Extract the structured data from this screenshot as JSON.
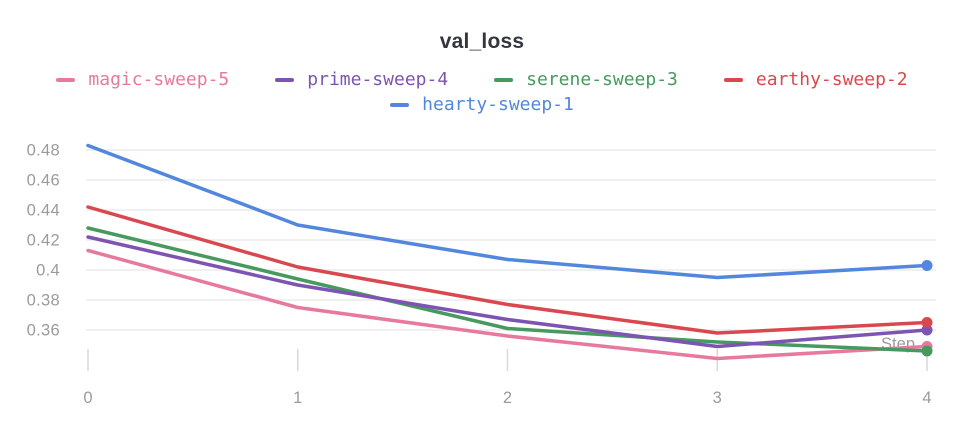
{
  "chart_data": {
    "type": "line",
    "title": "val_loss",
    "x_axis_label": "Step",
    "x": [
      0,
      1,
      2,
      3,
      4
    ],
    "x_tick_labels": [
      "0",
      "1",
      "2",
      "3",
      "4"
    ],
    "y_ticks": [
      0.48,
      0.46,
      0.44,
      0.42,
      0.4,
      0.38,
      0.36
    ],
    "y_tick_labels": [
      "0.48",
      "0.46",
      "0.44",
      "0.42",
      "0.4",
      "0.38",
      "0.36"
    ],
    "ylim_visible": [
      0.36,
      0.48
    ],
    "grid": "horizontal",
    "legend_position": "top",
    "marker": "dot-on-last-point",
    "legend_rows": [
      [
        "magic-sweep-5",
        "prime-sweep-4",
        "serene-sweep-3",
        "earthy-sweep-2"
      ],
      [
        "hearty-sweep-1"
      ]
    ],
    "series": [
      {
        "name": "magic-sweep-5",
        "color": "#e8799e",
        "values": [
          0.413,
          0.375,
          0.356,
          0.341,
          0.349
        ]
      },
      {
        "name": "prime-sweep-4",
        "color": "#7d54b2",
        "values": [
          0.422,
          0.39,
          0.367,
          0.349,
          0.36
        ]
      },
      {
        "name": "serene-sweep-3",
        "color": "#479a5f",
        "values": [
          0.428,
          0.394,
          0.361,
          0.352,
          0.346
        ]
      },
      {
        "name": "earthy-sweep-2",
        "color": "#d9484f",
        "values": [
          0.442,
          0.402,
          0.377,
          0.358,
          0.365
        ]
      },
      {
        "name": "hearty-sweep-1",
        "color": "#5387dd",
        "values": [
          0.483,
          0.43,
          0.407,
          0.395,
          0.403
        ]
      }
    ],
    "colors": {
      "title_text": "#33373d",
      "axis_text": "#9b9b9b",
      "gridline": "#e8e8e8",
      "tick_mark": "#d9d9d9"
    }
  }
}
